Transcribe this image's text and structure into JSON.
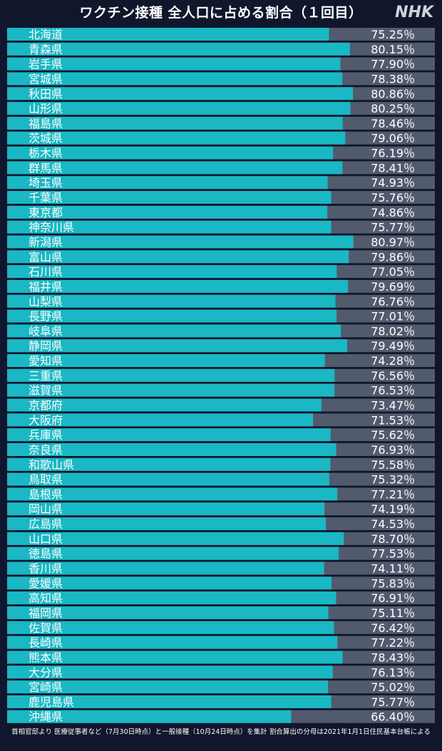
{
  "header": {
    "title": "ワクチン接種 全人口に占める割合（１回目）",
    "logo": "NHK"
  },
  "footnote": "首相官邸より 医療従事者など（7月30日時点）と一般接種（10月24日時点）を集計 割合算出の分母は2021年1月1日住民基本台帳による",
  "colors": {
    "background": "#10162c",
    "bar_fill": "#19b8c4",
    "bar_track": "#525a6e",
    "text": "#ffffff"
  },
  "chart_data": {
    "type": "bar",
    "orientation": "horizontal",
    "title": "ワクチン接種 全人口に占める割合（１回目）",
    "value_suffix": "%",
    "xlim": [
      0,
      100
    ],
    "categories": [
      "北海道",
      "青森県",
      "岩手県",
      "宮城県",
      "秋田県",
      "山形県",
      "福島県",
      "茨城県",
      "栃木県",
      "群馬県",
      "埼玉県",
      "千葉県",
      "東京都",
      "神奈川県",
      "新潟県",
      "富山県",
      "石川県",
      "福井県",
      "山梨県",
      "長野県",
      "岐阜県",
      "静岡県",
      "愛知県",
      "三重県",
      "滋賀県",
      "京都府",
      "大阪府",
      "兵庫県",
      "奈良県",
      "和歌山県",
      "鳥取県",
      "島根県",
      "岡山県",
      "広島県",
      "山口県",
      "徳島県",
      "香川県",
      "愛媛県",
      "高知県",
      "福岡県",
      "佐賀県",
      "長崎県",
      "熊本県",
      "大分県",
      "宮崎県",
      "鹿児島県",
      "沖縄県"
    ],
    "values": [
      75.25,
      80.15,
      77.9,
      78.38,
      80.86,
      80.25,
      78.46,
      79.06,
      76.19,
      78.41,
      74.93,
      75.76,
      74.86,
      75.77,
      80.97,
      79.86,
      77.05,
      79.69,
      76.76,
      77.01,
      78.02,
      79.49,
      74.28,
      76.56,
      76.53,
      73.47,
      71.53,
      75.62,
      76.93,
      75.58,
      75.32,
      77.21,
      74.19,
      74.53,
      78.7,
      77.53,
      74.11,
      75.83,
      76.91,
      75.11,
      76.42,
      77.22,
      78.43,
      76.13,
      75.02,
      75.77,
      66.4
    ],
    "labels": [
      "75.25％",
      "80.15％",
      "77.90％",
      "78.38％",
      "80.86％",
      "80.25％",
      "78.46％",
      "79.06％",
      "76.19％",
      "78.41％",
      "74.93％",
      "75.76％",
      "74.86％",
      "75.77％",
      "80.97％",
      "79.86％",
      "77.05％",
      "79.69％",
      "76.76％",
      "77.01％",
      "78.02％",
      "79.49％",
      "74.28％",
      "76.56％",
      "76.53％",
      "73.47％",
      "71.53％",
      "75.62％",
      "76.93％",
      "75.58％",
      "75.32％",
      "77.21％",
      "74.19％",
      "74.53％",
      "78.70％",
      "77.53％",
      "74.11％",
      "75.83％",
      "76.91％",
      "75.11％",
      "76.42％",
      "77.22％",
      "78.43％",
      "76.13％",
      "75.02％",
      "75.77％",
      "66.40％"
    ]
  }
}
